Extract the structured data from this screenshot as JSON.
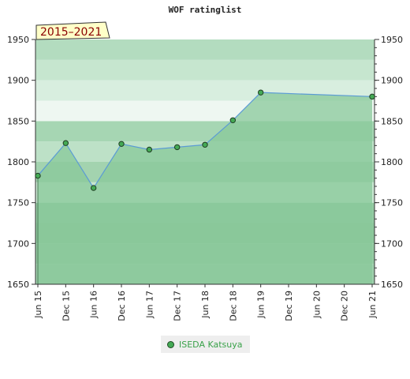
{
  "chart_data": {
    "type": "area",
    "title": "WOF ratinglist",
    "period_label": "2015–2021",
    "categories": [
      "Jun 15",
      "Dec 15",
      "Jun 16",
      "Dec 16",
      "Jun 17",
      "Dec 17",
      "Jun 18",
      "Dec 18",
      "Jun 19",
      "Dec 19",
      "Jun 20",
      "Dec 20",
      "Jun 21"
    ],
    "ylim": [
      1650,
      1950
    ],
    "yticks": [
      1650,
      1700,
      1750,
      1800,
      1850,
      1900,
      1950
    ],
    "grid": true,
    "legend_position": "bottom",
    "series": [
      {
        "name": "ISEDA Katsuya",
        "points": [
          {
            "x": "Jun 15",
            "y": 1783
          },
          {
            "x": "Dec 15",
            "y": 1823
          },
          {
            "x": "Jun 16",
            "y": 1768
          },
          {
            "x": "Dec 16",
            "y": 1822
          },
          {
            "x": "Jun 17",
            "y": 1815
          },
          {
            "x": "Dec 17",
            "y": 1818
          },
          {
            "x": "Jun 18",
            "y": 1821
          },
          {
            "x": "Dec 18",
            "y": 1851
          },
          {
            "x": "Jun 19",
            "y": 1885
          },
          {
            "x": "Jun 21",
            "y": 1880
          }
        ]
      }
    ],
    "colors": {
      "line": "#5b9bd5",
      "fill": "#88c89a",
      "marker": "#44aa55",
      "legend_text": "#3aa24a",
      "period_box_bg": "#ffffc8",
      "period_text": "#8b0000"
    }
  }
}
